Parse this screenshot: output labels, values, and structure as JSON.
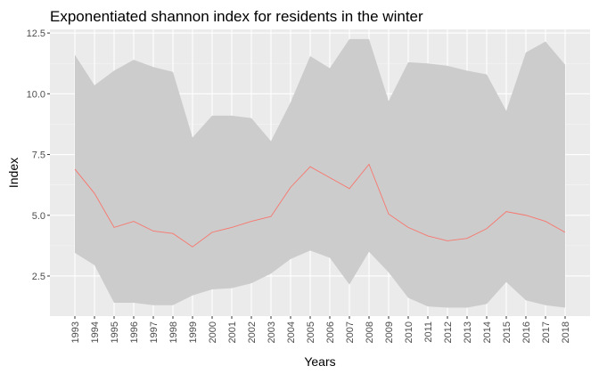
{
  "chart_data": {
    "type": "line",
    "title": "Exponentiated shannon index for residents in the winter",
    "xlabel": "Years",
    "ylabel": "Index",
    "x": [
      "1993",
      "1994",
      "1995",
      "1996",
      "1997",
      "1998",
      "1999",
      "2000",
      "2001",
      "2002",
      "2003",
      "2004",
      "2005",
      "2006",
      "2007",
      "2008",
      "2009",
      "2010",
      "2011",
      "2012",
      "2013",
      "2014",
      "2015",
      "2016",
      "2017",
      "2018"
    ],
    "series": [
      {
        "values": [
          6.9,
          5.9,
          4.5,
          4.75,
          4.35,
          4.25,
          3.7,
          4.3,
          4.5,
          4.75,
          4.95,
          6.15,
          7.0,
          6.55,
          6.1,
          7.1,
          5.05,
          4.5,
          4.15,
          3.95,
          4.05,
          4.45,
          5.15,
          5.0,
          4.75,
          4.3
        ],
        "lower": [
          3.45,
          2.95,
          1.4,
          1.4,
          1.3,
          1.3,
          1.7,
          1.95,
          2.0,
          2.2,
          2.6,
          3.2,
          3.55,
          3.25,
          2.15,
          3.5,
          2.65,
          1.6,
          1.25,
          1.2,
          1.2,
          1.35,
          2.25,
          1.5,
          1.3,
          1.2
        ],
        "upper": [
          11.6,
          10.35,
          10.95,
          11.4,
          11.1,
          10.9,
          8.2,
          9.1,
          9.1,
          9.0,
          8.05,
          9.65,
          11.55,
          11.05,
          12.25,
          12.25,
          9.7,
          11.3,
          11.25,
          11.15,
          10.95,
          10.8,
          9.3,
          11.7,
          12.15,
          11.2
        ],
        "color": "#f8766d",
        "ribbon_color": "#cccccc"
      }
    ],
    "y_ticks": [
      "2.5",
      "5.0",
      "7.5",
      "10.0",
      "12.5"
    ],
    "ylim": [
      0.85,
      12.65
    ],
    "grid": true,
    "panel_background": "#ebebeb"
  }
}
